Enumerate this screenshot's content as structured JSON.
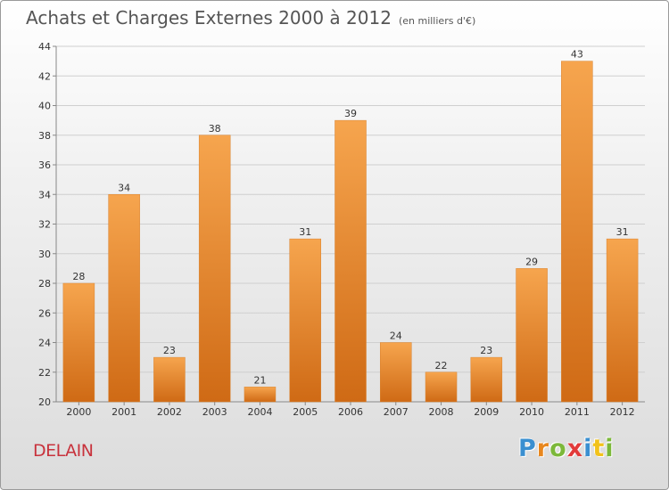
{
  "title": "Achats et Charges Externes 2000 à 2012",
  "unit": "(en milliers d'€)",
  "commune": "DELAIN",
  "logo": {
    "letters": [
      "P",
      "r",
      "o",
      "x",
      "i",
      "t",
      "i"
    ],
    "colors": [
      "#3a8fd0",
      "#e8871e",
      "#7cb83a",
      "#e23a3a",
      "#3a8fd0",
      "#f2c21b",
      "#7cb83a"
    ]
  },
  "colors": {
    "bar_top": "#f6a54e",
    "bar_bottom": "#cf6a15",
    "grid": "#cfcfcf",
    "axis": "#888888"
  },
  "chart_data": {
    "type": "bar",
    "categories": [
      "2000",
      "2001",
      "2002",
      "2003",
      "2004",
      "2005",
      "2006",
      "2007",
      "2008",
      "2009",
      "2010",
      "2011",
      "2012"
    ],
    "values": [
      28,
      34,
      23,
      38,
      21,
      31,
      39,
      24,
      22,
      23,
      29,
      43,
      31
    ],
    "ylim": [
      20,
      44
    ],
    "yticks": [
      20,
      22,
      24,
      26,
      28,
      30,
      32,
      34,
      36,
      38,
      40,
      42,
      44
    ],
    "grid": true,
    "title": "Achats et Charges Externes 2000 à 2012",
    "xlabel": "",
    "ylabel": ""
  }
}
